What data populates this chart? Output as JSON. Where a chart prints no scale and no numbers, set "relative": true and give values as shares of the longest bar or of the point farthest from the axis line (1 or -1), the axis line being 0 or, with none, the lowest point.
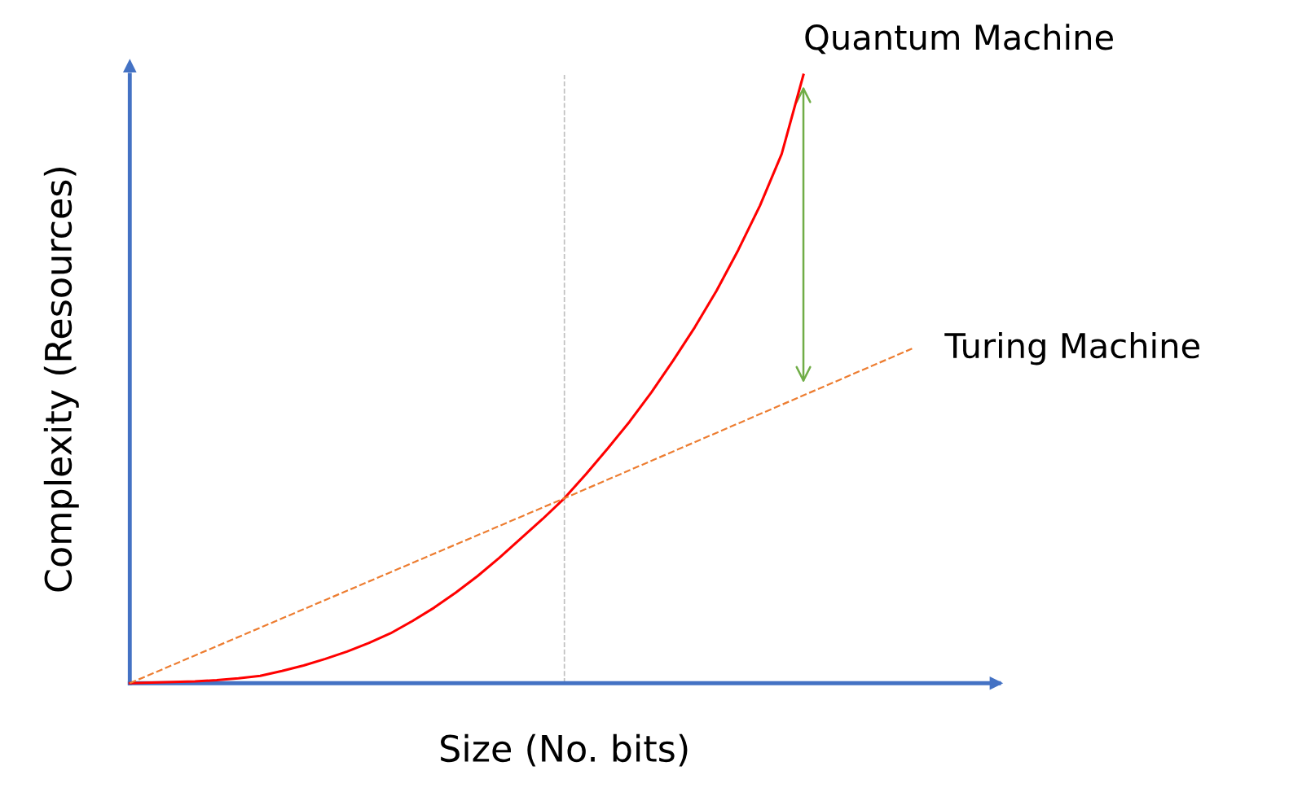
{
  "chart_data": {
    "type": "line",
    "relative": true,
    "xlabel": "Size (No. bits)",
    "ylabel": "Complexity (Resources)",
    "categories": [
      null,
      null,
      null,
      null,
      null,
      null,
      null,
      null,
      null,
      null,
      null,
      null,
      null,
      null,
      null,
      null,
      null,
      null,
      null,
      null,
      null,
      null,
      null,
      null,
      null,
      null,
      null,
      null,
      null,
      null,
      null,
      null,
      null,
      null,
      null,
      null,
      null,
      null,
      null,
      null,
      null
    ],
    "series": [
      {
        "name": "Quantum Machine",
        "color": "#ff0000",
        "line_style": "solid",
        "values": [
          0,
          0.001,
          0.002,
          0.003,
          0.005,
          0.008,
          0.012,
          0.02,
          0.029,
          0.04,
          0.052,
          0.066,
          0.082,
          0.102,
          0.124,
          0.149,
          0.176,
          0.206,
          0.238,
          0.27,
          0.304,
          0.344,
          0.386,
          0.43,
          0.478,
          0.53,
          0.585,
          0.645,
          0.712,
          0.785,
          0.87,
          1.0,
          null,
          null,
          null,
          null,
          null,
          null,
          null,
          null,
          null
        ]
      },
      {
        "name": "Turing Machine",
        "color": "#ed7d31",
        "line_style": "dashed",
        "values": [
          0,
          null,
          null,
          null,
          null,
          null,
          null,
          null,
          null,
          null,
          null,
          null,
          null,
          null,
          null,
          null,
          null,
          null,
          null,
          null,
          0.304,
          null,
          null,
          null,
          null,
          null,
          null,
          null,
          null,
          null,
          null,
          null,
          null,
          null,
          null,
          null,
          0.55,
          null,
          null,
          null,
          null
        ]
      }
    ],
    "grid": false,
    "legend": false,
    "tick_labels": false,
    "marker": "none"
  }
}
